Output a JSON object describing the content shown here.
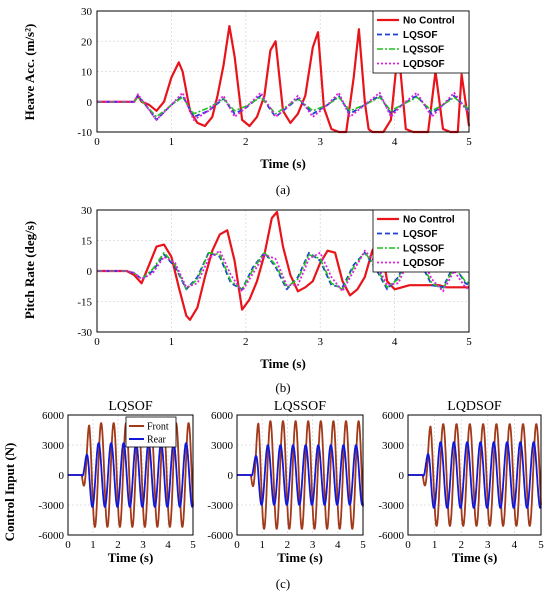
{
  "panels": [
    {
      "id": "a",
      "caption": "(a)",
      "xlabel": "Time (s)",
      "ylabel": "Heave Acc. (m/s²)",
      "xlim": [
        0,
        5
      ],
      "ylim": [
        -10,
        30
      ],
      "xticks": [
        "0",
        "1",
        "2",
        "3",
        "4",
        "5"
      ],
      "yticks": [
        "-10",
        "0",
        "10",
        "20",
        "30"
      ],
      "grid": true,
      "legend": [
        "No Control",
        "LQSOF",
        "LQSSOF",
        "LQDSOF"
      ],
      "legend_position": "top-right"
    },
    {
      "id": "b",
      "caption": "(b)",
      "xlabel": "Time (s)",
      "ylabel": "Pitch Rate (deg/s)",
      "xlim": [
        0,
        5
      ],
      "ylim": [
        -30,
        30
      ],
      "xticks": [
        "0",
        "1",
        "2",
        "3",
        "4",
        "5"
      ],
      "yticks": [
        "-30",
        "-15",
        "0",
        "15",
        "30"
      ],
      "grid": true,
      "legend": [
        "No Control",
        "LQSOF",
        "LQSSOF",
        "LQDSOF"
      ],
      "legend_position": "top-right"
    }
  ],
  "control_panels": {
    "caption": "(c)",
    "ylabel": "Control Input (N)",
    "xlabel": "Time (s)",
    "xticks": [
      "0",
      "1",
      "2",
      "3",
      "4",
      "5"
    ],
    "yticks": [
      "-6000",
      "-3000",
      "0",
      "3000",
      "6000"
    ],
    "legend": [
      "Front",
      "Rear"
    ],
    "titles": [
      "LQSOF",
      "LQSSOF",
      "LQDSOF"
    ]
  },
  "colors": {
    "no_control": "#e8141a",
    "lqsof": "#1f3fd6",
    "lqssof": "#1fc21f",
    "lqdsof": "#e020e0",
    "front": "#a23a1a",
    "rear": "#1218d8",
    "grid": "#d9d9d9"
  },
  "chart_data": [
    {
      "type": "line",
      "title": "",
      "xlabel": "Time (s)",
      "ylabel": "Heave Acc. (m/s²)",
      "xlim": [
        0,
        5
      ],
      "ylim": [
        -10,
        30
      ],
      "series": [
        {
          "name": "No Control",
          "x": [
            0,
            0.5,
            0.55,
            0.6,
            0.7,
            0.8,
            0.9,
            1.0,
            1.1,
            1.15,
            1.25,
            1.35,
            1.45,
            1.55,
            1.62,
            1.7,
            1.78,
            1.85,
            1.95,
            2.05,
            2.15,
            2.25,
            2.33,
            2.4,
            2.5,
            2.6,
            2.7,
            2.8,
            2.9,
            2.97,
            3.05,
            3.15,
            3.25,
            3.35,
            3.45,
            3.52,
            3.6,
            3.65,
            3.7,
            3.75,
            3.85,
            3.95,
            4.05,
            4.15,
            4.25,
            4.3,
            4.45,
            4.55,
            4.65,
            4.75,
            4.85,
            4.9,
            5.0
          ],
          "y": [
            0,
            0,
            2,
            0,
            -1,
            -3,
            0,
            8,
            13,
            10,
            -3,
            -7,
            -8,
            -5,
            2,
            12,
            25,
            15,
            -6,
            -8,
            -5,
            2,
            17,
            20,
            -3,
            -7,
            -4,
            2,
            18,
            23,
            -2,
            -9,
            -10,
            -10,
            8,
            24,
            0,
            -9,
            -10,
            -10,
            -10,
            -6,
            18,
            -9,
            -10,
            -10,
            -10,
            10,
            -9,
            -10,
            -10,
            9,
            -8
          ]
        },
        {
          "name": "LQSOF",
          "x": [
            0,
            0.5,
            0.55,
            0.65,
            0.8,
            1.0,
            1.15,
            1.3,
            1.5,
            1.7,
            1.85,
            2.0,
            2.2,
            2.4,
            2.55,
            2.7,
            2.9,
            3.1,
            3.25,
            3.4,
            3.6,
            3.8,
            3.95,
            4.1,
            4.3,
            4.5,
            4.65,
            4.8,
            5.0
          ],
          "y": [
            0,
            0,
            2,
            -1,
            -6,
            -1,
            2,
            -5,
            -3,
            1,
            -4,
            -2,
            2,
            -5,
            -2,
            1,
            -4,
            -1,
            2,
            -4,
            -1,
            2,
            -4,
            -1,
            2,
            -4,
            -1,
            2,
            -3
          ]
        },
        {
          "name": "LQSSOF",
          "x": [
            0,
            0.5,
            0.55,
            0.65,
            0.8,
            1.0,
            1.15,
            1.3,
            1.5,
            1.7,
            1.85,
            2.0,
            2.2,
            2.4,
            2.55,
            2.7,
            2.9,
            3.1,
            3.25,
            3.4,
            3.6,
            3.8,
            3.95,
            4.1,
            4.3,
            4.5,
            4.65,
            4.8,
            5.0
          ],
          "y": [
            0,
            0,
            1.5,
            -1,
            -5,
            -1,
            1.5,
            -4,
            -2,
            1,
            -3,
            -1.5,
            1.5,
            -4,
            -1.5,
            1,
            -3,
            -1,
            1.5,
            -3,
            -1,
            1.5,
            -3,
            -1,
            1.5,
            -3,
            -1,
            1.5,
            -2.5
          ]
        },
        {
          "name": "LQDSOF",
          "x": [
            0,
            0.5,
            0.55,
            0.65,
            0.8,
            1.0,
            1.15,
            1.3,
            1.5,
            1.7,
            1.85,
            2.0,
            2.2,
            2.4,
            2.55,
            2.7,
            2.9,
            3.1,
            3.25,
            3.4,
            3.6,
            3.8,
            3.95,
            4.1,
            4.3,
            4.5,
            4.65,
            4.8,
            5.0
          ],
          "y": [
            0,
            0,
            2.5,
            -1,
            -6,
            -1,
            3,
            -6,
            -3,
            2,
            -5,
            -2,
            3,
            -5,
            -2,
            2,
            -5,
            -1,
            3,
            -5,
            -1,
            3,
            -5,
            -1,
            3,
            -5,
            -1,
            3,
            -4
          ]
        }
      ]
    },
    {
      "type": "line",
      "title": "",
      "xlabel": "Time (s)",
      "ylabel": "Pitch Rate (deg/s)",
      "xlim": [
        0,
        5
      ],
      "ylim": [
        -30,
        30
      ],
      "series": [
        {
          "name": "No Control",
          "x": [
            0,
            0.4,
            0.5,
            0.6,
            0.7,
            0.8,
            0.9,
            1.0,
            1.1,
            1.2,
            1.25,
            1.35,
            1.45,
            1.55,
            1.65,
            1.75,
            1.85,
            1.95,
            2.05,
            2.15,
            2.25,
            2.35,
            2.42,
            2.5,
            2.6,
            2.7,
            2.8,
            2.9,
            3.0,
            3.1,
            3.2,
            3.3,
            3.4,
            3.5,
            3.6,
            3.7,
            3.8,
            3.9,
            4.0,
            4.1,
            4.2,
            4.3,
            4.4,
            4.5,
            4.6,
            4.7,
            4.8,
            4.9,
            5.0
          ],
          "y": [
            0,
            0,
            -2,
            -6,
            3,
            12,
            13,
            7,
            -8,
            -22,
            -24,
            -18,
            -3,
            10,
            18,
            20,
            5,
            -19,
            -14,
            -5,
            8,
            26,
            29,
            12,
            -2,
            -10,
            -8,
            -5,
            4,
            10,
            9,
            -5,
            -12,
            -9,
            -3,
            10,
            16,
            -5,
            -9,
            -8,
            -7,
            -7,
            -7,
            -7,
            -7,
            -8,
            -8,
            -8,
            -8
          ]
        },
        {
          "name": "LQSOF",
          "x": [
            0,
            0.4,
            0.5,
            0.6,
            0.75,
            0.9,
            1.05,
            1.2,
            1.35,
            1.5,
            1.65,
            1.8,
            1.95,
            2.1,
            2.25,
            2.4,
            2.55,
            2.7,
            2.85,
            3.0,
            3.15,
            3.3,
            3.45,
            3.6,
            3.75,
            3.9,
            4.05,
            4.2,
            4.35,
            4.5,
            4.65,
            4.8,
            4.95,
            5.0
          ],
          "y": [
            0,
            0,
            -1,
            -4,
            0,
            8,
            2,
            -9,
            -3,
            9,
            7,
            -6,
            -9,
            2,
            9,
            2,
            -9,
            -3,
            9,
            5,
            -7,
            -8,
            3,
            9,
            1,
            -9,
            -3,
            9,
            4,
            -7,
            -8,
            3,
            -6,
            -7
          ]
        },
        {
          "name": "LQSSOF",
          "x": [
            0,
            0.4,
            0.5,
            0.6,
            0.75,
            0.9,
            1.05,
            1.2,
            1.35,
            1.5,
            1.65,
            1.8,
            1.95,
            2.1,
            2.25,
            2.4,
            2.55,
            2.7,
            2.85,
            3.0,
            3.15,
            3.3,
            3.45,
            3.6,
            3.75,
            3.9,
            4.05,
            4.2,
            4.35,
            4.5,
            4.65,
            4.8,
            4.95,
            5.0
          ],
          "y": [
            0,
            0,
            -1,
            -4,
            1,
            9,
            3,
            -9,
            -4,
            9,
            8,
            -5,
            -9,
            1,
            9,
            3,
            -8,
            -4,
            8,
            6,
            -6,
            -9,
            2,
            9,
            2,
            -8,
            -4,
            8,
            5,
            -6,
            -9,
            2,
            -5,
            -6
          ]
        },
        {
          "name": "LQDSOF",
          "x": [
            0,
            0.4,
            0.5,
            0.6,
            0.75,
            0.9,
            1.05,
            1.2,
            1.35,
            1.5,
            1.65,
            1.8,
            1.95,
            2.1,
            2.25,
            2.4,
            2.55,
            2.7,
            2.85,
            3.0,
            3.15,
            3.3,
            3.45,
            3.6,
            3.75,
            3.9,
            4.05,
            4.2,
            4.35,
            4.5,
            4.65,
            4.8,
            4.95,
            5.0
          ],
          "y": [
            0,
            0,
            -1,
            -4,
            -1,
            7,
            4,
            -8,
            -6,
            6,
            10,
            -2,
            -10,
            -1,
            8,
            6,
            -7,
            -7,
            6,
            9,
            -3,
            -10,
            0,
            10,
            4,
            -7,
            -6,
            6,
            8,
            -4,
            -10,
            0,
            -8,
            -9
          ]
        }
      ]
    },
    {
      "type": "line",
      "title": "LQSOF",
      "xlabel": "Time (s)",
      "ylabel": "Control Input (N)",
      "xlim": [
        0,
        5
      ],
      "ylim": [
        -6000,
        6000
      ],
      "series": [
        {
          "name": "Front",
          "onset": 0.55,
          "period": 0.5,
          "amplitude": 5200,
          "phase": 0.15
        },
        {
          "name": "Rear",
          "onset": 0.55,
          "period": 0.5,
          "amplitude": 3200,
          "phase": 0.05
        }
      ]
    },
    {
      "type": "line",
      "title": "LQSSOF",
      "xlabel": "Time (s)",
      "ylabel": "",
      "xlim": [
        0,
        5
      ],
      "ylim": [
        -6000,
        6000
      ],
      "series": [
        {
          "name": "Front",
          "onset": 0.55,
          "period": 0.5,
          "amplitude": 5400,
          "phase": 0.15
        },
        {
          "name": "Rear",
          "onset": 0.55,
          "period": 0.5,
          "amplitude": 3000,
          "phase": 0.05
        }
      ]
    },
    {
      "type": "line",
      "title": "LQDSOF",
      "xlabel": "Time (s)",
      "ylabel": "",
      "xlim": [
        0,
        5
      ],
      "ylim": [
        -6000,
        6000
      ],
      "series": [
        {
          "name": "Front",
          "onset": 0.55,
          "period": 0.5,
          "amplitude": 5100,
          "phase": 0.15
        },
        {
          "name": "Rear",
          "onset": 0.55,
          "period": 0.5,
          "amplitude": 3300,
          "phase": 0.05
        }
      ]
    }
  ]
}
